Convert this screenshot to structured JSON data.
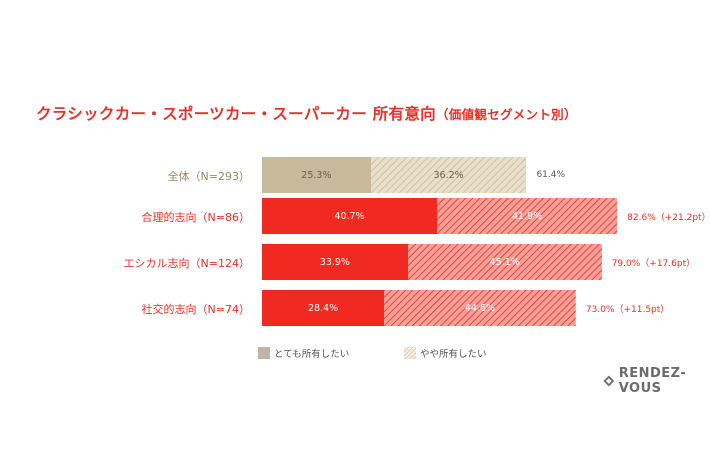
{
  "title": {
    "main": "クラシックカー・スポーツカー・スーパーカー 所有意向",
    "sub": "（価値観セグメント別）"
  },
  "legend": {
    "strong": "とても所有したい",
    "weak": "やや所有したい"
  },
  "logo": "RENDEZ-VOUS",
  "colors": {
    "title": "#e8302a",
    "base_solid": "#c8b99a",
    "base_hatch": "#e9e0cc",
    "segment_solid": "#f02a20",
    "segment_hatch": "#f4a19a",
    "legend_solid": "#bdb5a6"
  },
  "chart_data": {
    "type": "bar",
    "orientation": "horizontal",
    "stacked": true,
    "categories": [
      "全体（N=293）",
      "合理的志向（N=86）",
      "エシカル志向（N=124）",
      "社交的志向（N=74）"
    ],
    "series": [
      {
        "name": "とても所有したい",
        "values": [
          25.3,
          40.7,
          33.9,
          28.4
        ],
        "labels": [
          "25.3%",
          "40.7%",
          "33.9%",
          "28.4%"
        ]
      },
      {
        "name": "やや所有したい",
        "values": [
          36.2,
          41.9,
          45.1,
          44.6
        ],
        "labels": [
          "36.2%",
          "41.9%",
          "45.1%",
          "44.6%"
        ]
      }
    ],
    "totals": [
      61.4,
      82.6,
      79.0,
      73.0
    ],
    "total_labels": [
      "61.4%",
      "82.6%（+21.2pt）",
      "79.0%（+17.6pt）",
      "73.0%（+11.5pt）"
    ],
    "xlim": [
      0,
      100
    ]
  }
}
